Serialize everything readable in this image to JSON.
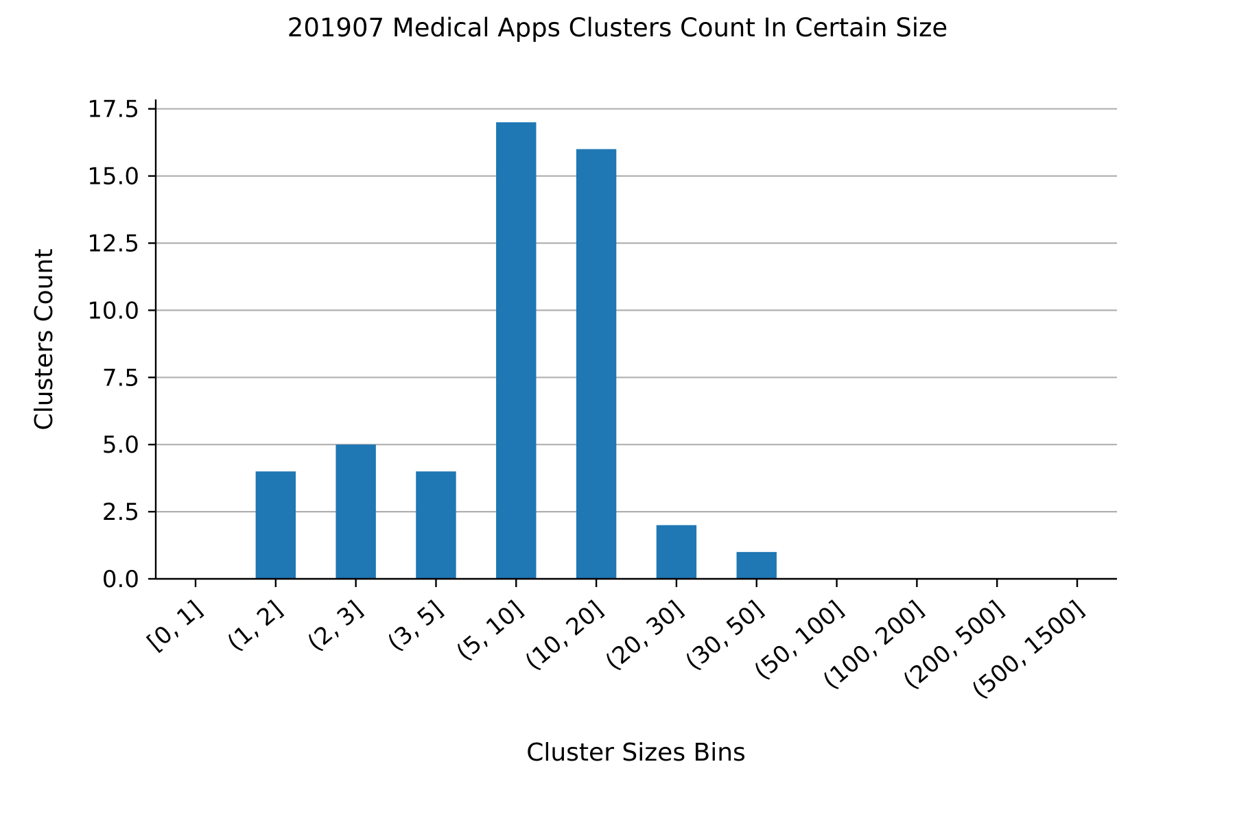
{
  "chart_data": {
    "type": "bar",
    "title": "201907 Medical Apps Clusters Count In Certain Size",
    "xlabel": "Cluster Sizes Bins",
    "ylabel": "Clusters Count",
    "categories": [
      "[0, 1]",
      "(1, 2]",
      "(2, 3]",
      "(3, 5]",
      "(5, 10]",
      "(10, 20]",
      "(20, 30]",
      "(30, 50]",
      "(50, 100]",
      "(100, 200]",
      "(200, 500]",
      "(500, 1500]"
    ],
    "values": [
      0,
      4,
      5,
      4,
      17,
      16,
      2,
      1,
      0,
      0,
      0,
      0
    ],
    "ylim": [
      0,
      17.85
    ],
    "yticks": [
      0.0,
      2.5,
      5.0,
      7.5,
      10.0,
      12.5,
      15.0,
      17.5
    ],
    "ytick_labels": [
      "0.0",
      "2.5",
      "5.0",
      "7.5",
      "10.0",
      "12.5",
      "15.0",
      "17.5"
    ],
    "grid": "y",
    "legend": "none",
    "bar_color": "#1f77b4"
  }
}
